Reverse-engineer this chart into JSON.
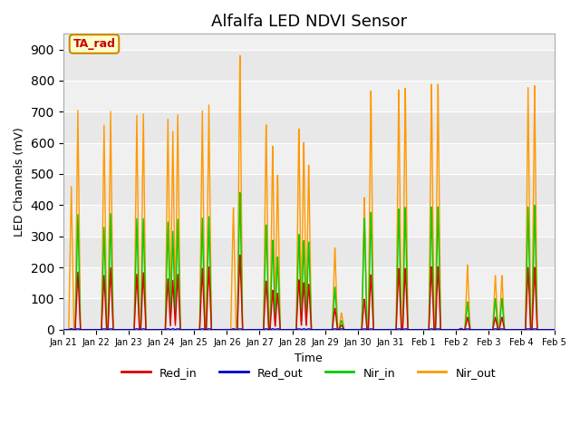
{
  "title": "Alfalfa LED NDVI Sensor",
  "xlabel": "Time",
  "ylabel": "LED Channels (mV)",
  "ylim": [
    0,
    950
  ],
  "yticks": [
    0,
    100,
    200,
    300,
    400,
    500,
    600,
    700,
    800,
    900
  ],
  "background_color": "#ffffff",
  "plot_bg_color": "#f0f0f0",
  "legend_label": "TA_rad",
  "legend_box_color": "#ffffcc",
  "legend_box_border": "#cc8800",
  "series_colors": {
    "Red_in": "#dd0000",
    "Red_out": "#0000cc",
    "Nir_in": "#00cc00",
    "Nir_out": "#ff9900"
  },
  "x_tick_labels": [
    "Jan 21",
    "Jan 22",
    "Jan 23",
    "Jan 24",
    "Jan 25",
    "Jan 26",
    "Jan 27",
    "Jan 28",
    "Jan 29",
    "Jan 30",
    "Jan 31",
    "Feb 1",
    "Feb 2",
    "Feb 3",
    "Feb 4",
    "Feb 5"
  ],
  "grid_color": "#ffffff",
  "title_fontsize": 13,
  "grid_alpha": 1.0,
  "alternating_bands": [
    [
      800,
      900,
      "#e8e8e8"
    ],
    [
      600,
      700,
      "#e8e8e8"
    ],
    [
      400,
      500,
      "#e8e8e8"
    ],
    [
      200,
      300,
      "#e8e8e8"
    ],
    [
      0,
      100,
      "#e8e8e8"
    ]
  ]
}
